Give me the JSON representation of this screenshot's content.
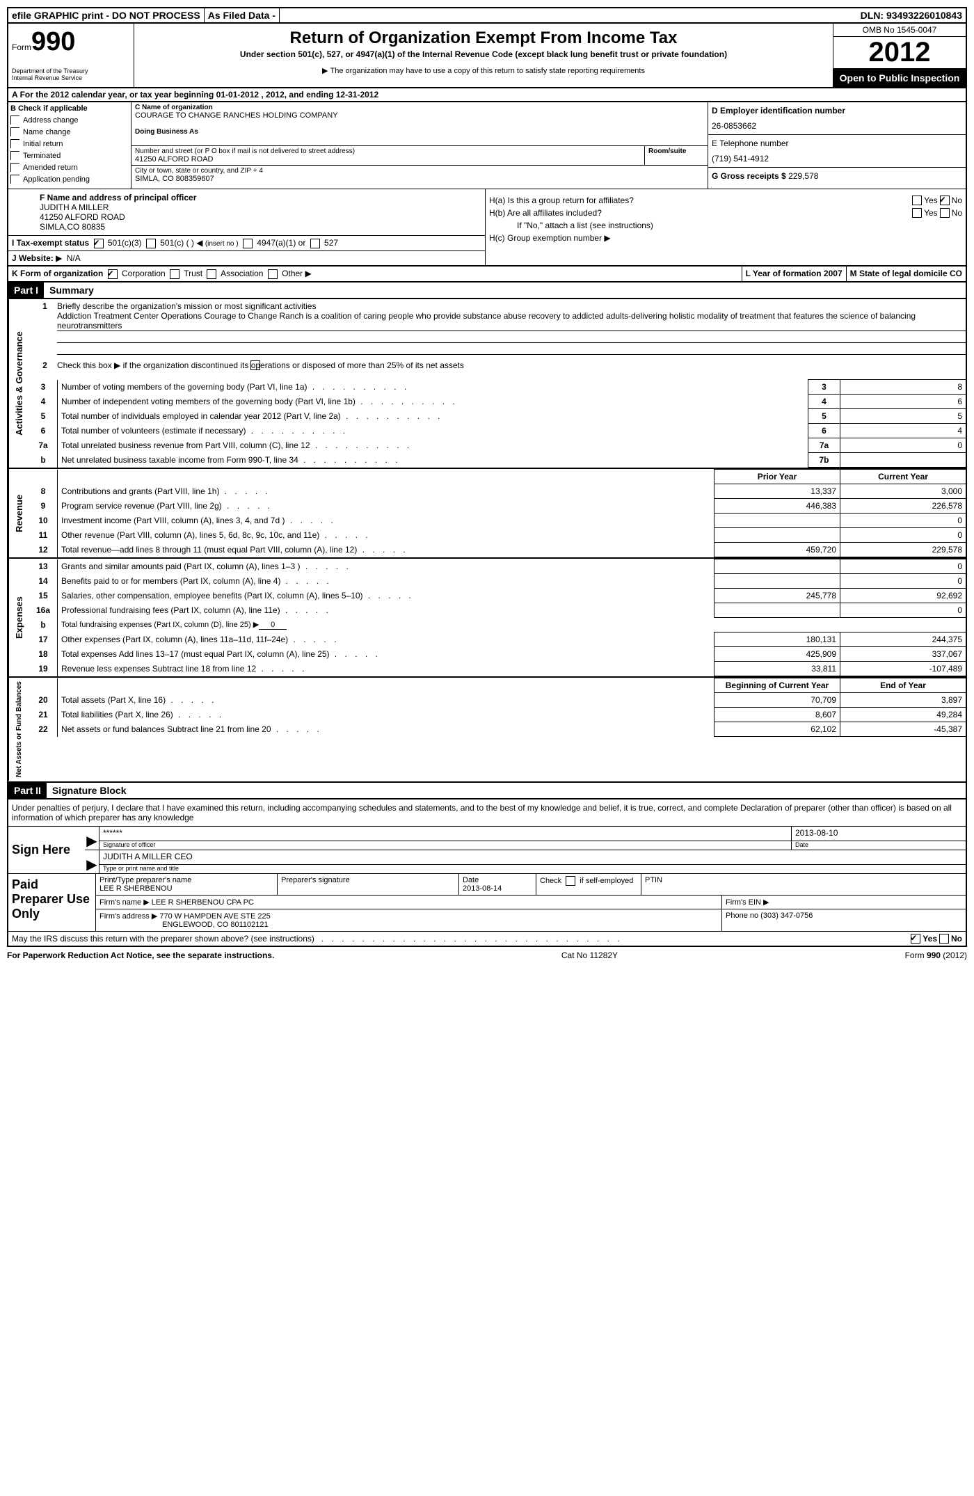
{
  "topbar": {
    "efile": "efile GRAPHIC print - DO NOT PROCESS",
    "asfiled": "As Filed Data -",
    "dln_label": "DLN:",
    "dln": "93493226010843"
  },
  "header": {
    "form_label": "Form",
    "form_num": "990",
    "dept1": "Department of the Treasury",
    "dept2": "Internal Revenue Service",
    "title": "Return of Organization Exempt From Income Tax",
    "subtitle": "Under section 501(c), 527, or 4947(a)(1) of the Internal Revenue Code (except black lung benefit trust or private foundation)",
    "note": "The organization may have to use a copy of this return to satisfy state reporting requirements",
    "omb": "OMB No 1545-0047",
    "year": "2012",
    "open": "Open to Public Inspection"
  },
  "period": "For the 2012 calendar year, or tax year beginning 01-01-2012    , 2012, and ending 12-31-2012",
  "sectionB": {
    "label": "B Check if applicable",
    "items": [
      "Address change",
      "Name change",
      "Initial return",
      "Terminated",
      "Amended return",
      "Application pending"
    ]
  },
  "sectionC": {
    "name_label": "C Name of organization",
    "name": "COURAGE TO CHANGE RANCHES HOLDING COMPANY",
    "dba_label": "Doing Business As",
    "street_label": "Number and street (or P O  box if mail is not delivered to street address)",
    "room_label": "Room/suite",
    "street": "41250 ALFORD ROAD",
    "city_label": "City or town, state or country, and ZIP + 4",
    "city": "SIMLA, CO  808359607"
  },
  "sectionD": {
    "ein_label": "D Employer identification number",
    "ein": "26-0853662",
    "phone_label": "E Telephone number",
    "phone": "(719) 541-4912",
    "gross_label": "G Gross receipts $",
    "gross": "229,578"
  },
  "sectionF": {
    "label": "F Name and address of principal officer",
    "name": "JUDITH A MILLER",
    "street": "41250 ALFORD ROAD",
    "city": "SIMLA,CO 80835"
  },
  "sectionH": {
    "ha": "H(a)  Is this a group return for affiliates?",
    "hb": "H(b)  Are all affiliates included?",
    "hb_note": "If \"No,\" attach a list  (see instructions)",
    "hc": "H(c)   Group exemption number"
  },
  "rowI": {
    "label": "I   Tax-exempt status",
    "opt1": "501(c)(3)",
    "opt2": "501(c) (   )",
    "opt2_note": "(insert no )",
    "opt3": "4947(a)(1) or",
    "opt4": "527"
  },
  "rowJ": {
    "label": "J   Website:",
    "val": "N/A"
  },
  "rowK": {
    "label": "K Form of organization",
    "opts": [
      "Corporation",
      "Trust",
      "Association",
      "Other"
    ],
    "l_label": "L Year of formation  2007",
    "m_label": "M State of legal domicile  CO"
  },
  "part1": {
    "header": "Part I",
    "title": "Summary"
  },
  "summary": {
    "line1_label": "Briefly describe the organization's mission or most significant activities",
    "line1_text": "Addiction Treatment Center Operations  Courage to Change Ranch is a coalition of caring people who provide substance abuse recovery to addicted adults-delivering holistic modality of treatment that features the science of balancing neurotransmitters",
    "line2": "Check this box ▶  if the organization discontinued its operations or disposed of more than 25% of its net assets",
    "lines_ag": [
      {
        "n": "3",
        "d": "Number of voting members of the governing body (Part VI, line 1a)",
        "b": "3",
        "v": "8"
      },
      {
        "n": "4",
        "d": "Number of independent voting members of the governing body (Part VI, line 1b)",
        "b": "4",
        "v": "6"
      },
      {
        "n": "5",
        "d": "Total number of individuals employed in calendar year 2012 (Part V, line 2a)",
        "b": "5",
        "v": "5"
      },
      {
        "n": "6",
        "d": "Total number of volunteers (estimate if necessary)",
        "b": "6",
        "v": "4"
      },
      {
        "n": "7a",
        "d": "Total unrelated business revenue from Part VIII, column (C), line 12",
        "b": "7a",
        "v": "0"
      },
      {
        "n": "b",
        "d": "Net unrelated business taxable income from Form 990-T, line 34",
        "b": "7b",
        "v": ""
      }
    ],
    "col_headers": {
      "prior": "Prior Year",
      "current": "Current Year"
    },
    "revenue": [
      {
        "n": "8",
        "d": "Contributions and grants (Part VIII, line 1h)",
        "p": "13,337",
        "c": "3,000"
      },
      {
        "n": "9",
        "d": "Program service revenue (Part VIII, line 2g)",
        "p": "446,383",
        "c": "226,578"
      },
      {
        "n": "10",
        "d": "Investment income (Part VIII, column (A), lines 3, 4, and 7d )",
        "p": "",
        "c": "0"
      },
      {
        "n": "11",
        "d": "Other revenue (Part VIII, column (A), lines 5, 6d, 8c, 9c, 10c, and 11e)",
        "p": "",
        "c": "0"
      },
      {
        "n": "12",
        "d": "Total revenue—add lines 8 through 11 (must equal Part VIII, column (A), line 12)",
        "p": "459,720",
        "c": "229,578"
      }
    ],
    "expenses": [
      {
        "n": "13",
        "d": "Grants and similar amounts paid (Part IX, column (A), lines 1–3 )",
        "p": "",
        "c": "0"
      },
      {
        "n": "14",
        "d": "Benefits paid to or for members (Part IX, column (A), line 4)",
        "p": "",
        "c": "0"
      },
      {
        "n": "15",
        "d": "Salaries, other compensation, employee benefits (Part IX, column (A), lines 5–10)",
        "p": "245,778",
        "c": "92,692"
      },
      {
        "n": "16a",
        "d": "Professional fundraising fees (Part IX, column (A), line 11e)",
        "p": "",
        "c": "0"
      },
      {
        "n": "b",
        "d": "Total fundraising expenses (Part IX, column (D), line 25) ▶",
        "p": "—",
        "c": "—"
      },
      {
        "n": "17",
        "d": "Other expenses (Part IX, column (A), lines 11a–11d, 11f–24e)",
        "p": "180,131",
        "c": "244,375"
      },
      {
        "n": "18",
        "d": "Total expenses  Add lines 13–17 (must equal Part IX, column (A), line 25)",
        "p": "425,909",
        "c": "337,067"
      },
      {
        "n": "19",
        "d": "Revenue less expenses  Subtract line 18 from line 12",
        "p": "33,811",
        "c": "-107,489"
      }
    ],
    "na_headers": {
      "begin": "Beginning of Current Year",
      "end": "End of Year"
    },
    "netassets": [
      {
        "n": "20",
        "d": "Total assets (Part X, line 16)",
        "p": "70,709",
        "c": "3,897"
      },
      {
        "n": "21",
        "d": "Total liabilities (Part X, line 26)",
        "p": "8,607",
        "c": "49,284"
      },
      {
        "n": "22",
        "d": "Net assets or fund balances  Subtract line 21 from line 20",
        "p": "62,102",
        "c": "-45,387"
      }
    ]
  },
  "vtabs": {
    "ag": "Activities & Governance",
    "rev": "Revenue",
    "exp": "Expenses",
    "na": "Net Assets or Fund Balances"
  },
  "part2": {
    "header": "Part II",
    "title": "Signature Block",
    "declaration": "Under penalties of perjury, I declare that I have examined this return, including accompanying schedules and statements, and to the best of my knowledge and belief, it is true, correct, and complete  Declaration of preparer (other than officer) is based on all information of which preparer has any knowledge",
    "sign_here": "Sign Here",
    "sig_stars": "******",
    "sig_officer_label": "Signature of officer",
    "sig_date": "2013-08-10",
    "sig_date_label": "Date",
    "sig_name": "JUDITH A MILLER CEO",
    "sig_name_label": "Type or print name and title",
    "paid": "Paid Preparer Use Only",
    "prep_name_label": "Print/Type preparer's name",
    "prep_name": "LEE R SHERBENOU",
    "prep_sig_label": "Preparer's signature",
    "prep_date_label": "Date",
    "prep_date": "2013-08-14",
    "prep_check": "Check      if self-employed",
    "ptin_label": "PTIN",
    "firm_name_label": "Firm's name    ▶",
    "firm_name": "LEE R SHERBENOU CPA PC",
    "firm_ein_label": "Firm's EIN ▶",
    "firm_addr_label": "Firm's address ▶",
    "firm_addr1": "770 W HAMPDEN AVE STE 225",
    "firm_addr2": "ENGLEWOOD, CO  801102121",
    "firm_phone_label": "Phone no",
    "firm_phone": "(303) 347-0756",
    "irs_discuss": "May the IRS discuss this return with the preparer shown above? (see instructions)"
  },
  "footer": {
    "left": "For Paperwork Reduction Act Notice, see the separate instructions.",
    "mid": "Cat No  11282Y",
    "right": "Form 990 (2012)"
  }
}
